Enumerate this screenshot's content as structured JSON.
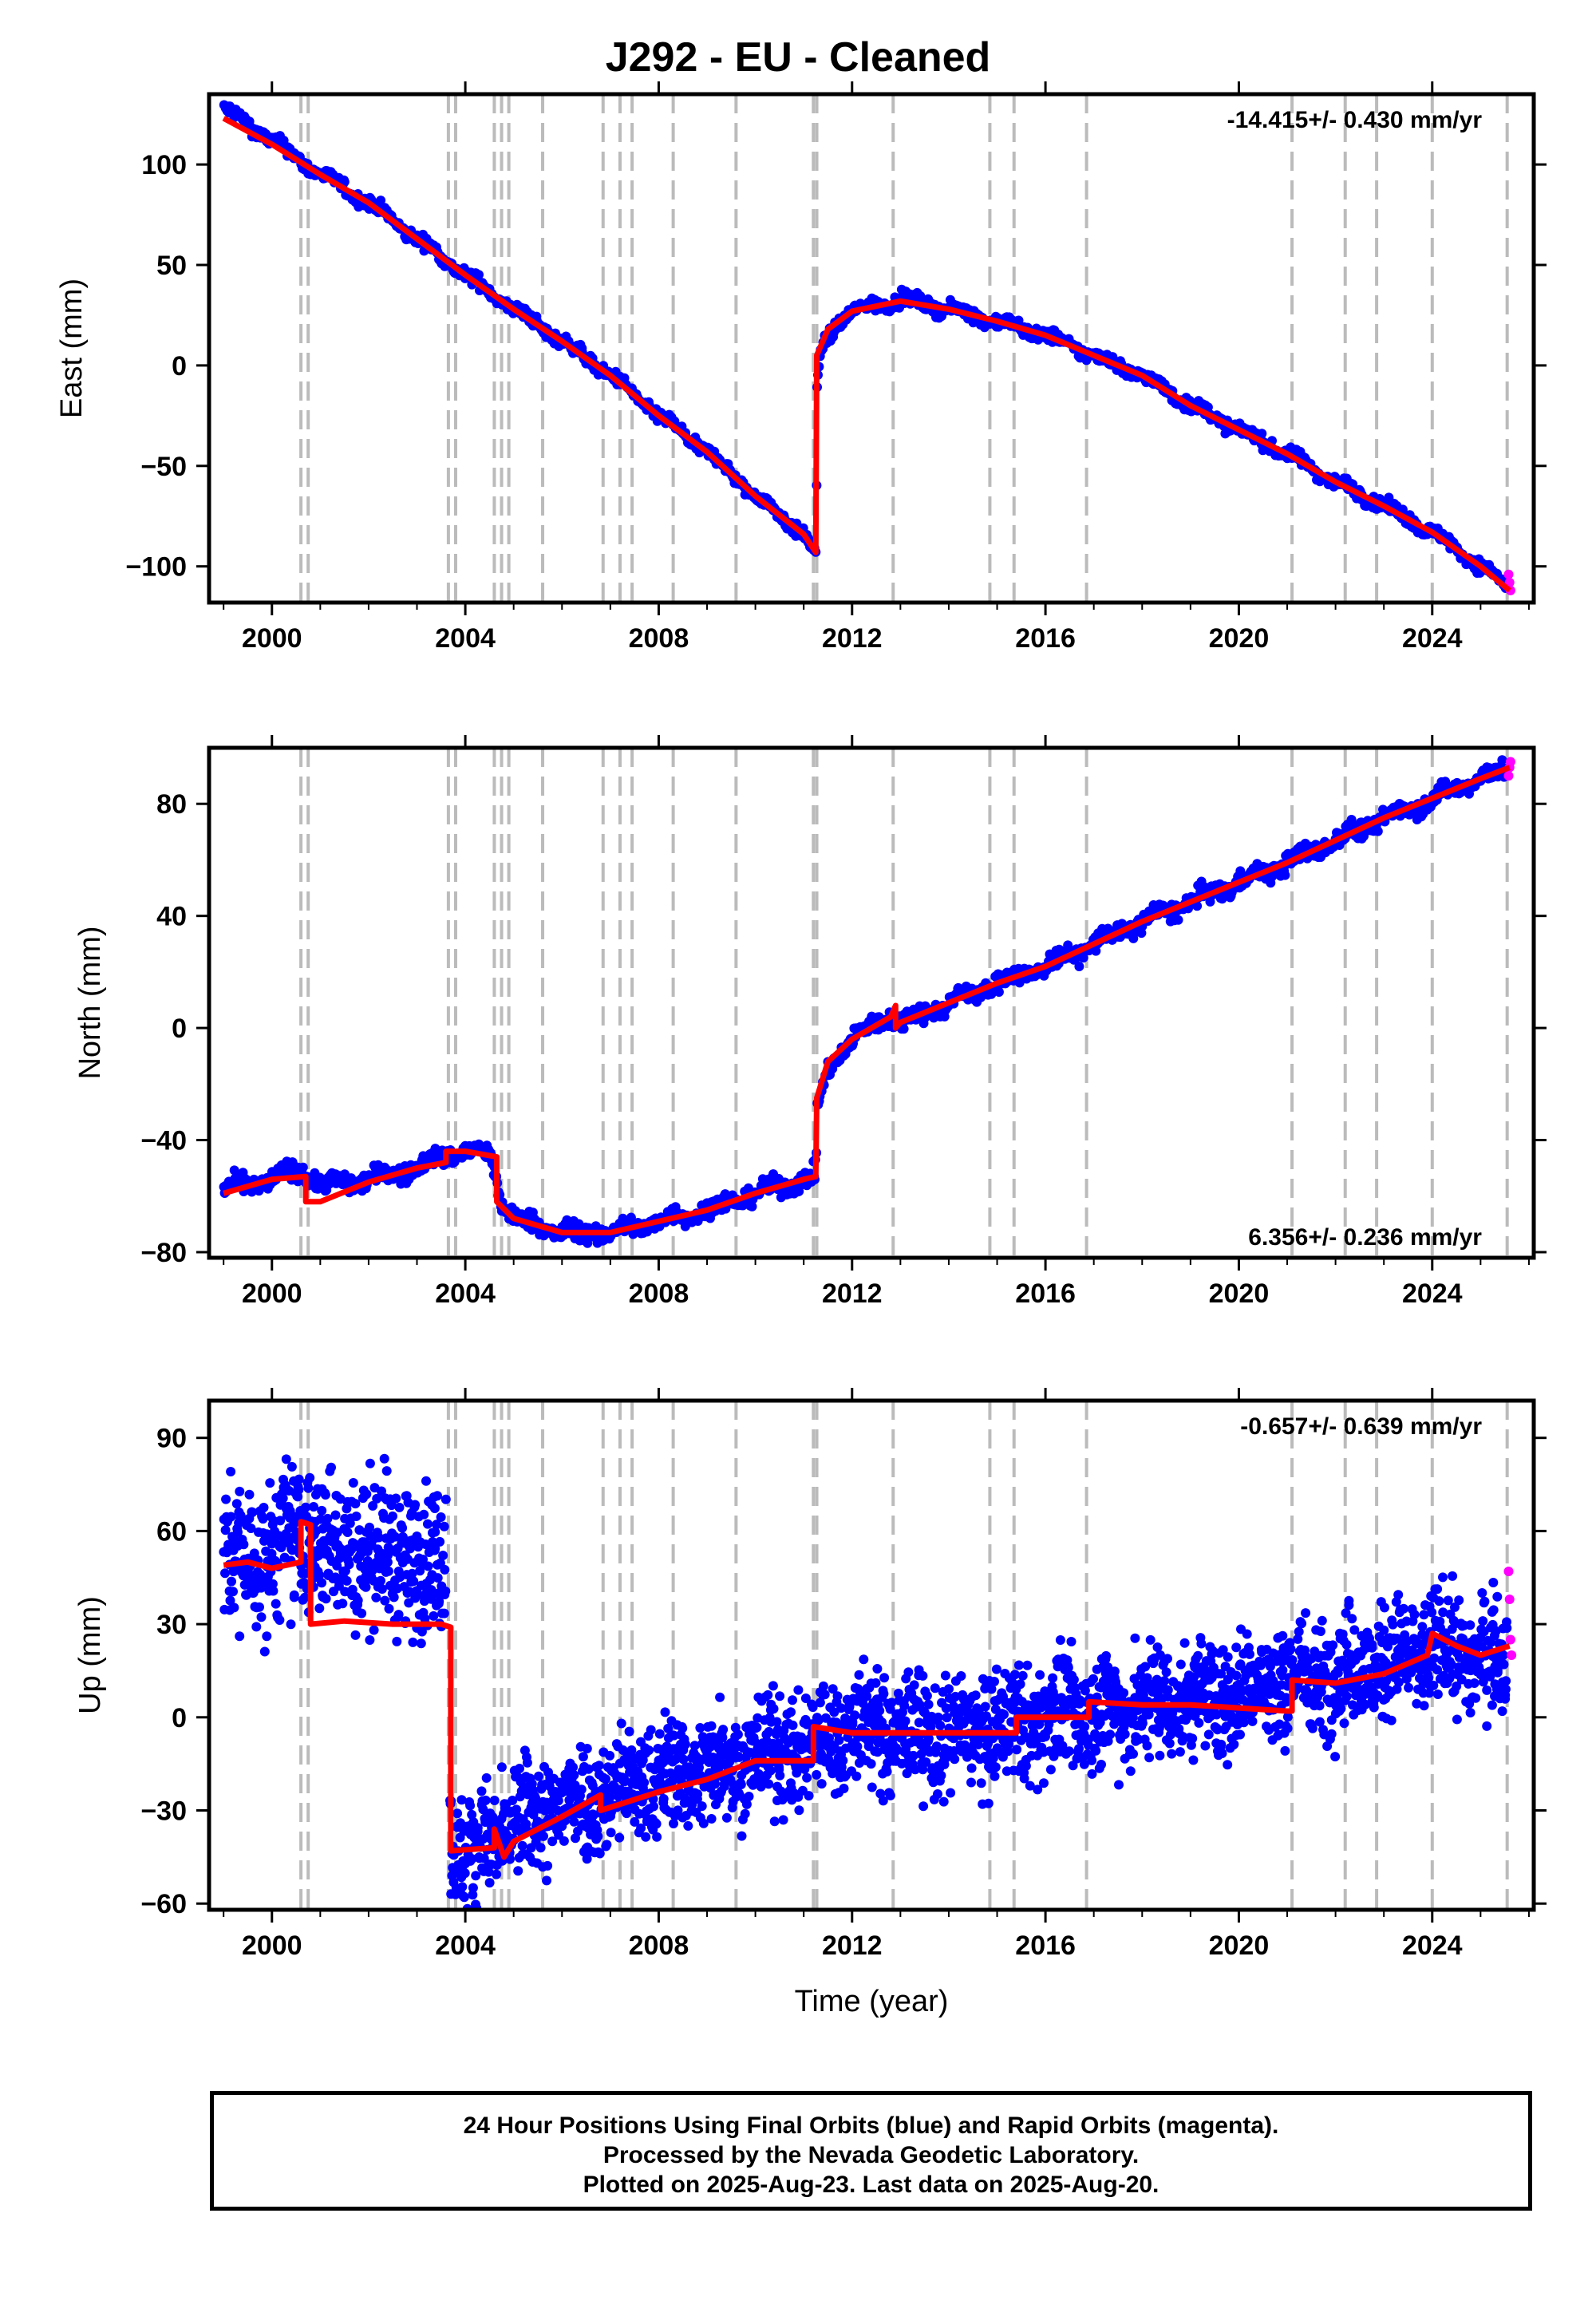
{
  "title": "J292  - EU - Cleaned",
  "xlabel": "Time (year)",
  "caption": {
    "line1": "24 Hour Positions Using Final Orbits (blue) and Rapid Orbits (magenta).",
    "line2": "Processed by the Nevada Geodetic Laboratory.",
    "line3": "Plotted on 2025-Aug-23. Last data on 2025-Aug-20."
  },
  "colors": {
    "final": "#0000ff",
    "rapid": "#ff00ff",
    "model": "#ff0000",
    "event_lines": "#bbbbbb"
  },
  "chart_data": [
    {
      "type": "scatter",
      "ylabel": "East (mm)",
      "rate": "-14.415+/- 0.430 mm/yr",
      "rate_position": "top-right",
      "xlim": [
        1998.7,
        2026.1
      ],
      "ylim": [
        -118,
        135
      ],
      "xticks": [
        2000,
        2004,
        2008,
        2012,
        2016,
        2020,
        2024
      ],
      "yticks": [
        -100,
        -50,
        0,
        50,
        100
      ],
      "series": [
        {
          "role": "final",
          "points": [
            [
              1999.0,
              128
            ],
            [
              2000.0,
              112
            ],
            [
              2001.0,
              95
            ],
            [
              2002.0,
              81
            ],
            [
              2003.0,
              63
            ],
            [
              2004.0,
              45
            ],
            [
              2005.0,
              28
            ],
            [
              2006.0,
              12
            ],
            [
              2007.0,
              -5
            ],
            [
              2008.0,
              -25
            ],
            [
              2009.0,
              -43
            ],
            [
              2010.0,
              -65
            ],
            [
              2011.0,
              -84
            ],
            [
              2011.25,
              -95
            ],
            [
              2011.27,
              -15
            ],
            [
              2011.35,
              8
            ],
            [
              2011.7,
              22
            ],
            [
              2012.0,
              27
            ],
            [
              2013.0,
              33
            ],
            [
              2014.0,
              28
            ],
            [
              2015.0,
              22
            ],
            [
              2016.0,
              15
            ],
            [
              2017.0,
              5
            ],
            [
              2018.0,
              -5
            ],
            [
              2019.0,
              -20
            ],
            [
              2020.0,
              -32
            ],
            [
              2021.0,
              -44
            ],
            [
              2022.0,
              -58
            ],
            [
              2023.0,
              -70
            ],
            [
              2024.0,
              -83
            ],
            [
              2025.0,
              -100
            ],
            [
              2025.55,
              -110
            ]
          ]
        },
        {
          "role": "rapid",
          "points": [
            [
              2025.58,
              -104
            ],
            [
              2025.6,
              -108
            ],
            [
              2025.62,
              -112
            ]
          ]
        },
        {
          "role": "model",
          "points": [
            [
              1999.0,
              123
            ],
            [
              2000.0,
              110
            ],
            [
              2001.0,
              95
            ],
            [
              2002.0,
              81
            ],
            [
              2003.0,
              63
            ],
            [
              2004.0,
              45
            ],
            [
              2005.0,
              28
            ],
            [
              2006.0,
              12
            ],
            [
              2007.0,
              -5
            ],
            [
              2008.0,
              -25
            ],
            [
              2009.0,
              -43
            ],
            [
              2010.0,
              -65
            ],
            [
              2011.0,
              -84
            ],
            [
              2011.25,
              -93
            ],
            [
              2011.27,
              5
            ],
            [
              2011.5,
              18
            ],
            [
              2012.0,
              27
            ],
            [
              2013.0,
              32
            ],
            [
              2014.0,
              28
            ],
            [
              2015.0,
              22
            ],
            [
              2016.0,
              15
            ],
            [
              2017.0,
              5
            ],
            [
              2018.0,
              -5
            ],
            [
              2019.0,
              -20
            ],
            [
              2020.0,
              -32
            ],
            [
              2021.0,
              -44
            ],
            [
              2022.0,
              -58
            ],
            [
              2023.0,
              -70
            ],
            [
              2024.0,
              -83
            ],
            [
              2025.0,
              -100
            ],
            [
              2025.6,
              -112
            ]
          ]
        }
      ]
    },
    {
      "type": "scatter",
      "ylabel": "North (mm)",
      "rate": "6.356+/- 0.236 mm/yr",
      "rate_position": "bottom-right",
      "xlim": [
        1998.7,
        2026.1
      ],
      "ylim": [
        -82,
        100
      ],
      "xticks": [
        2000,
        2004,
        2008,
        2012,
        2016,
        2020,
        2024
      ],
      "yticks": [
        -80,
        -40,
        0,
        40,
        80
      ],
      "series": [
        {
          "role": "final",
          "points": [
            [
              1999.0,
              -58
            ],
            [
              2000.0,
              -54
            ],
            [
              2000.6,
              -50
            ],
            [
              2001.0,
              -56
            ],
            [
              2002.0,
              -54
            ],
            [
              2003.0,
              -50
            ],
            [
              2003.8,
              -44
            ],
            [
              2004.5,
              -45
            ],
            [
              2004.75,
              -62
            ],
            [
              2005.0,
              -68
            ],
            [
              2006.0,
              -73
            ],
            [
              2007.0,
              -73
            ],
            [
              2008.0,
              -69
            ],
            [
              2009.0,
              -65
            ],
            [
              2010.0,
              -59
            ],
            [
              2011.0,
              -54
            ],
            [
              2011.25,
              -53
            ],
            [
              2011.27,
              -30
            ],
            [
              2011.5,
              -14
            ],
            [
              2012.0,
              -4
            ],
            [
              2012.8,
              5
            ],
            [
              2013.0,
              2
            ],
            [
              2014.0,
              9
            ],
            [
              2015.0,
              16
            ],
            [
              2016.0,
              22
            ],
            [
              2017.0,
              30
            ],
            [
              2018.0,
              38
            ],
            [
              2019.0,
              45
            ],
            [
              2020.0,
              52
            ],
            [
              2021.0,
              59
            ],
            [
              2022.0,
              67
            ],
            [
              2023.0,
              75
            ],
            [
              2024.0,
              82
            ],
            [
              2025.0,
              89
            ],
            [
              2025.55,
              92
            ]
          ]
        },
        {
          "role": "rapid",
          "points": [
            [
              2025.58,
              90
            ],
            [
              2025.6,
              93
            ],
            [
              2025.62,
              95
            ]
          ]
        },
        {
          "role": "model",
          "points": [
            [
              1999.0,
              -59
            ],
            [
              2000.0,
              -54
            ],
            [
              2000.7,
              -53
            ],
            [
              2000.7,
              -62
            ],
            [
              2001.0,
              -62
            ],
            [
              2002.0,
              -55
            ],
            [
              2003.0,
              -50
            ],
            [
              2003.6,
              -48
            ],
            [
              2003.6,
              -44
            ],
            [
              2004.0,
              -44
            ],
            [
              2004.65,
              -46
            ],
            [
              2004.65,
              -62
            ],
            [
              2005.0,
              -68
            ],
            [
              2006.0,
              -73
            ],
            [
              2007.0,
              -73
            ],
            [
              2008.0,
              -69
            ],
            [
              2009.0,
              -65
            ],
            [
              2010.0,
              -59
            ],
            [
              2011.0,
              -54
            ],
            [
              2011.25,
              -53
            ],
            [
              2011.27,
              -25
            ],
            [
              2011.5,
              -12
            ],
            [
              2012.0,
              -4
            ],
            [
              2012.8,
              4
            ],
            [
              2012.9,
              8
            ],
            [
              2012.9,
              0
            ],
            [
              2013.0,
              2
            ],
            [
              2014.0,
              9
            ],
            [
              2015.0,
              16
            ],
            [
              2016.0,
              22
            ],
            [
              2017.0,
              30
            ],
            [
              2018.0,
              38
            ],
            [
              2019.0,
              45
            ],
            [
              2020.0,
              52
            ],
            [
              2021.0,
              59
            ],
            [
              2022.0,
              67
            ],
            [
              2023.0,
              75
            ],
            [
              2024.0,
              82
            ],
            [
              2025.0,
              89
            ],
            [
              2025.6,
              93
            ]
          ]
        }
      ]
    },
    {
      "type": "scatter",
      "ylabel": "Up (mm)",
      "rate": "-0.657+/- 0.639 mm/yr",
      "rate_position": "top-right",
      "xlim": [
        1998.7,
        2026.1
      ],
      "ylim": [
        -62,
        102
      ],
      "xticks": [
        2000,
        2004,
        2008,
        2012,
        2016,
        2020,
        2024
      ],
      "yticks": [
        -60,
        -30,
        0,
        30,
        60,
        90
      ],
      "series": [
        {
          "role": "final",
          "points": [
            [
              1999.0,
              50
            ],
            [
              2000.0,
              52
            ],
            [
              2000.6,
              60
            ],
            [
              2001.0,
              55
            ],
            [
              2002.0,
              55
            ],
            [
              2003.0,
              50
            ],
            [
              2003.6,
              50
            ],
            [
              2003.7,
              -38
            ],
            [
              2004.0,
              -45
            ],
            [
              2005.0,
              -35
            ],
            [
              2006.0,
              -28
            ],
            [
              2007.0,
              -24
            ],
            [
              2008.0,
              -20
            ],
            [
              2009.0,
              -16
            ],
            [
              2010.0,
              -12
            ],
            [
              2011.0,
              -10
            ],
            [
              2012.0,
              -3
            ],
            [
              2013.0,
              -5
            ],
            [
              2014.0,
              -6
            ],
            [
              2015.0,
              -4
            ],
            [
              2016.0,
              0
            ],
            [
              2017.0,
              2
            ],
            [
              2018.0,
              4
            ],
            [
              2019.0,
              6
            ],
            [
              2020.0,
              8
            ],
            [
              2021.0,
              12
            ],
            [
              2022.0,
              15
            ],
            [
              2023.0,
              17
            ],
            [
              2024.0,
              22
            ],
            [
              2025.0,
              20
            ],
            [
              2025.55,
              18
            ]
          ]
        },
        {
          "role": "rapid",
          "points": [
            [
              2025.58,
              47
            ],
            [
              2025.6,
              38
            ],
            [
              2025.62,
              25
            ],
            [
              2025.64,
              20
            ]
          ]
        },
        {
          "role": "model",
          "points": [
            [
              1999.0,
              49
            ],
            [
              1999.5,
              50
            ],
            [
              2000.0,
              48
            ],
            [
              2000.6,
              50
            ],
            [
              2000.6,
              63
            ],
            [
              2000.8,
              62
            ],
            [
              2000.8,
              30
            ],
            [
              2001.5,
              31
            ],
            [
              2002.5,
              30
            ],
            [
              2003.5,
              30
            ],
            [
              2003.7,
              29
            ],
            [
              2003.7,
              -43
            ],
            [
              2004.6,
              -42
            ],
            [
              2004.6,
              -36
            ],
            [
              2004.8,
              -45
            ],
            [
              2005.0,
              -40
            ],
            [
              2006.0,
              -32
            ],
            [
              2006.8,
              -25
            ],
            [
              2006.8,
              -30
            ],
            [
              2008.0,
              -24
            ],
            [
              2009.0,
              -20
            ],
            [
              2010.0,
              -14
            ],
            [
              2011.2,
              -14
            ],
            [
              2011.2,
              -3
            ],
            [
              2012.0,
              -5
            ],
            [
              2013.0,
              -5
            ],
            [
              2014.0,
              -5
            ],
            [
              2015.4,
              -5
            ],
            [
              2015.4,
              0
            ],
            [
              2016.9,
              0
            ],
            [
              2016.9,
              5
            ],
            [
              2018.0,
              4
            ],
            [
              2019.0,
              4
            ],
            [
              2020.0,
              3
            ],
            [
              2021.0,
              2
            ],
            [
              2021.1,
              2
            ],
            [
              2021.1,
              12
            ],
            [
              2022.0,
              11
            ],
            [
              2023.0,
              14
            ],
            [
              2023.9,
              20
            ],
            [
              2024.0,
              27
            ],
            [
              2024.5,
              23
            ],
            [
              2025.0,
              20
            ],
            [
              2025.6,
              23
            ]
          ]
        }
      ]
    }
  ],
  "event_lines": [
    2000.6,
    2000.75,
    2003.65,
    2003.8,
    2004.6,
    2004.75,
    2004.9,
    2005.6,
    2006.85,
    2007.2,
    2007.45,
    2008.3,
    2009.6,
    2011.2,
    2011.27,
    2012.85,
    2014.85,
    2015.35,
    2016.85,
    2021.1,
    2022.2,
    2022.85,
    2024.0,
    2025.55
  ]
}
